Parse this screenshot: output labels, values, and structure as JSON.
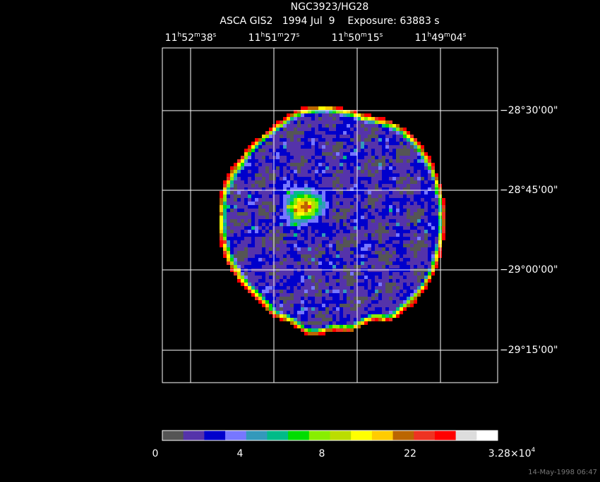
{
  "header": {
    "title": "NGC3923/HG28",
    "subtitle": "ASCA GIS2   1994 Jul  9    Exposure: 63883 s"
  },
  "ra_labels": [
    [
      "11",
      "h",
      "52",
      "m",
      "38",
      "s"
    ],
    [
      "11",
      "h",
      "51",
      "m",
      "27",
      "s"
    ],
    [
      "11",
      "h",
      "50",
      "m",
      "15",
      "s"
    ],
    [
      "11",
      "h",
      "49",
      "m",
      "04",
      "s"
    ]
  ],
  "dec_labels": [
    "−28°30'00\"",
    "−28°45'00\"",
    "−29°00'00\"",
    "−29°15'00\""
  ],
  "colorbar": {
    "colors": [
      "#555555",
      "#5533aa",
      "#0000cc",
      "#7777ff",
      "#3399bb",
      "#00bb88",
      "#00dd00",
      "#88ee00",
      "#bbdd00",
      "#ffff00",
      "#ffcc00",
      "#bb6600",
      "#ee3322",
      "#ff0000",
      "#dddddd",
      "#ffffff"
    ],
    "labels": [
      "0",
      "4",
      "8",
      "22"
    ],
    "max_label": {
      "mantissa": "3.28×10",
      "exponent": "4"
    }
  },
  "footer": "14-May-1998 06:47"
}
